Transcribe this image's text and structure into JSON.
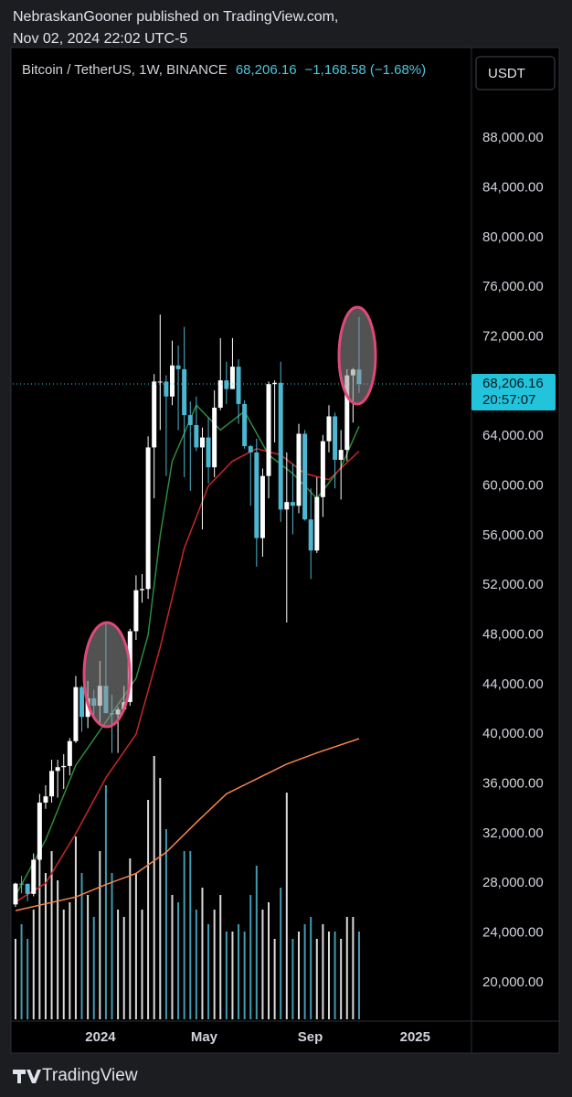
{
  "header": {
    "publisher_line": "NebraskanGooner published on TradingView.com,",
    "date_line": "Nov 02, 2024 22:02 UTC-5"
  },
  "chart_data": {
    "type": "candlestick",
    "title": "Bitcoin / TetherUS, 1W, BINANCE",
    "currency": "USDT",
    "last_price": {
      "value": 68206.16,
      "label": "68,206.16"
    },
    "change": "−1,168.58 (−1.68%)",
    "countdown": "20:57:07",
    "up_color": "#ffffff",
    "down_color": "#4db6d0",
    "x": [
      0,
      1,
      2,
      3,
      4,
      5,
      6,
      7,
      8,
      9,
      10,
      11,
      12,
      13,
      14,
      15,
      16,
      17,
      18,
      19,
      20,
      21,
      22,
      23,
      24,
      25,
      26,
      27,
      28,
      29,
      30,
      31,
      32,
      33,
      34,
      35,
      36,
      37,
      38,
      39,
      40,
      41,
      42,
      43,
      44,
      45,
      46,
      47,
      48,
      49,
      50,
      51,
      52,
      53,
      54,
      55,
      56,
      57
    ],
    "open": [
      26300,
      27970,
      27950,
      27150,
      29900,
      34500,
      35000,
      37050,
      37350,
      37450,
      39450,
      43800,
      41400,
      42900,
      42300,
      43900,
      41700,
      41600,
      42000,
      42600,
      48300,
      51600,
      51700,
      63100,
      68400,
      68400,
      67200,
      69700,
      69400,
      65700,
      64900,
      63100,
      63900,
      61500,
      66300,
      68500,
      67800,
      69600,
      66600,
      63200,
      62700,
      55800,
      60800,
      68200,
      68300,
      58100,
      58700,
      58400,
      64200,
      57300,
      54800,
      59100,
      63600,
      65600,
      62100,
      62900,
      68900,
      69375
    ],
    "high": [
      28050,
      28600,
      28000,
      30400,
      35200,
      35900,
      37950,
      37950,
      38400,
      39700,
      44700,
      43900,
      44300,
      43600,
      45900,
      49000,
      43200,
      42200,
      43900,
      48500,
      52800,
      52900,
      64000,
      69000,
      73800,
      68900,
      71700,
      71300,
      72800,
      66800,
      67200,
      64700,
      65500,
      67700,
      71900,
      70000,
      71900,
      70200,
      66900,
      63300,
      63800,
      61400,
      68400,
      68500,
      70000,
      62700,
      61800,
      65000,
      64500,
      59800,
      60700,
      64100,
      66500,
      65900,
      64500,
      69400,
      69500,
      73600
    ],
    "low": [
      26100,
      27200,
      26550,
      26950,
      29800,
      34000,
      34500,
      34900,
      35600,
      36700,
      39300,
      40200,
      40500,
      41400,
      40700,
      41700,
      38500,
      38500,
      41800,
      42300,
      47600,
      50600,
      50900,
      59000,
      64500,
      60800,
      66500,
      64500,
      60700,
      59600,
      62800,
      56500,
      60200,
      60700,
      66100,
      66600,
      67800,
      65000,
      63000,
      58400,
      53500,
      54300,
      59000,
      63500,
      57100,
      49000,
      56100,
      57800,
      57200,
      52500,
      54600,
      57500,
      62700,
      59800,
      58900,
      62000,
      65100,
      67500
    ],
    "close": [
      27970,
      27950,
      27150,
      29900,
      34500,
      35000,
      37050,
      37350,
      37450,
      39450,
      43800,
      41400,
      42900,
      42300,
      43900,
      41700,
      41600,
      42000,
      42600,
      48300,
      51600,
      51700,
      63100,
      68400,
      68400,
      67200,
      69700,
      69400,
      65700,
      64900,
      63100,
      63900,
      61500,
      66300,
      68500,
      67800,
      69600,
      66600,
      63200,
      62700,
      55800,
      60800,
      68200,
      68300,
      58100,
      58700,
      58400,
      64200,
      57300,
      54800,
      59100,
      63600,
      65600,
      62100,
      62900,
      68900,
      69375,
      68206.16
    ],
    "volume": [
      110000,
      130000,
      110000,
      150000,
      290000,
      200000,
      230000,
      190000,
      150000,
      160000,
      250000,
      200000,
      170000,
      140000,
      230000,
      320000,
      200000,
      150000,
      140000,
      220000,
      200000,
      150000,
      300000,
      360000,
      330000,
      260000,
      170000,
      160000,
      230000,
      230000,
      150000,
      180000,
      130000,
      150000,
      170000,
      120000,
      120000,
      130000,
      120000,
      170000,
      210000,
      150000,
      160000,
      110000,
      180000,
      310000,
      110000,
      120000,
      130000,
      140000,
      110000,
      130000,
      120000,
      120000,
      110000,
      140000,
      140000,
      120000
    ],
    "vlim": [
      0,
      400000
    ],
    "lines": [
      {
        "color": "#2e8b3a",
        "x": [
          0,
          5,
          10,
          15,
          20,
          22,
          24,
          26,
          30,
          34,
          38,
          42,
          46,
          50,
          54,
          57
        ],
        "values": [
          27000,
          31500,
          37500,
          41000,
          44500,
          48000,
          56000,
          62000,
          66500,
          64500,
          66000,
          62500,
          61000,
          59000,
          61500,
          64800
        ]
      },
      {
        "color": "#c62828",
        "x": [
          0,
          5,
          10,
          15,
          20,
          24,
          28,
          32,
          36,
          40,
          44,
          48,
          52,
          57
        ],
        "values": [
          26500,
          28000,
          32000,
          36500,
          40000,
          47000,
          55000,
          60000,
          62000,
          63000,
          62500,
          61000,
          60500,
          62800
        ]
      },
      {
        "color": "#f5844a",
        "x": [
          0,
          10,
          15,
          20,
          25,
          30,
          35,
          40,
          45,
          50,
          57
        ],
        "values": [
          25800,
          26900,
          27900,
          28800,
          30500,
          32900,
          35200,
          36400,
          37600,
          38500,
          39650
        ]
      }
    ],
    "xlim": [
      -0.45,
      75.5
    ],
    "xticks": [
      {
        "value": 14.1,
        "label": "2024"
      },
      {
        "value": 31.3,
        "label": "May"
      },
      {
        "value": 48.9,
        "label": "Sep"
      },
      {
        "value": 66.3,
        "label": "2025"
      }
    ],
    "ylim": [
      17050,
      95300
    ],
    "yticks": [
      {
        "value": 20000,
        "label": "20,000.00"
      },
      {
        "value": 24000,
        "label": "24,000.00"
      },
      {
        "value": 28000,
        "label": "28,000.00"
      },
      {
        "value": 32000,
        "label": "32,000.00"
      },
      {
        "value": 36000,
        "label": "36,000.00"
      },
      {
        "value": 40000,
        "label": "40,000.00"
      },
      {
        "value": 44000,
        "label": "44,000.00"
      },
      {
        "value": 48000,
        "label": "48,000.00"
      },
      {
        "value": 52000,
        "label": "52,000.00"
      },
      {
        "value": 56000,
        "label": "56,000.00"
      },
      {
        "value": 60000,
        "label": "60,000.00"
      },
      {
        "value": 64000,
        "label": "64,000.00"
      },
      {
        "value": 68000,
        "label": "68,000.00"
      },
      {
        "value": 72000,
        "label": "72,000.00"
      },
      {
        "value": 76000,
        "label": "76,000.00"
      },
      {
        "value": 80000,
        "label": "80,000.00"
      },
      {
        "value": 84000,
        "label": "84,000.00"
      },
      {
        "value": 88000,
        "label": "88,000.00"
      }
    ]
  },
  "footer": {
    "brand": "TradingView"
  }
}
